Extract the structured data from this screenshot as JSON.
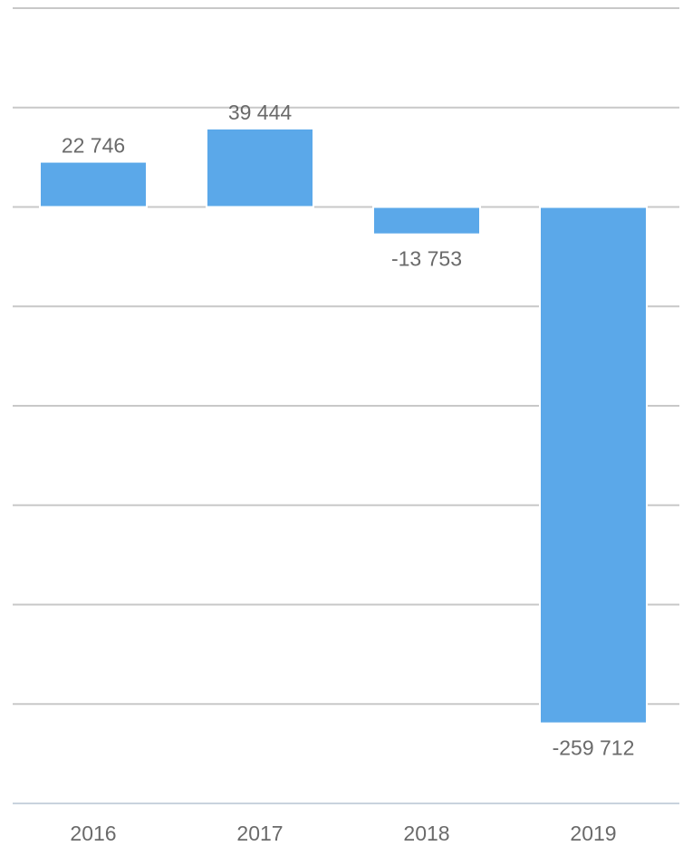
{
  "chart_data": {
    "type": "bar",
    "categories": [
      "2016",
      "2017",
      "2018",
      "2019"
    ],
    "values": [
      22746,
      39444,
      -13753,
      -259712
    ],
    "value_labels": [
      "22 746",
      "39 444",
      "-13 753",
      "-259 712"
    ],
    "ylim": [
      -300000,
      100000
    ],
    "grid": true,
    "bar_color": "#5ba8e9",
    "title": "",
    "xlabel": "",
    "ylabel": ""
  }
}
